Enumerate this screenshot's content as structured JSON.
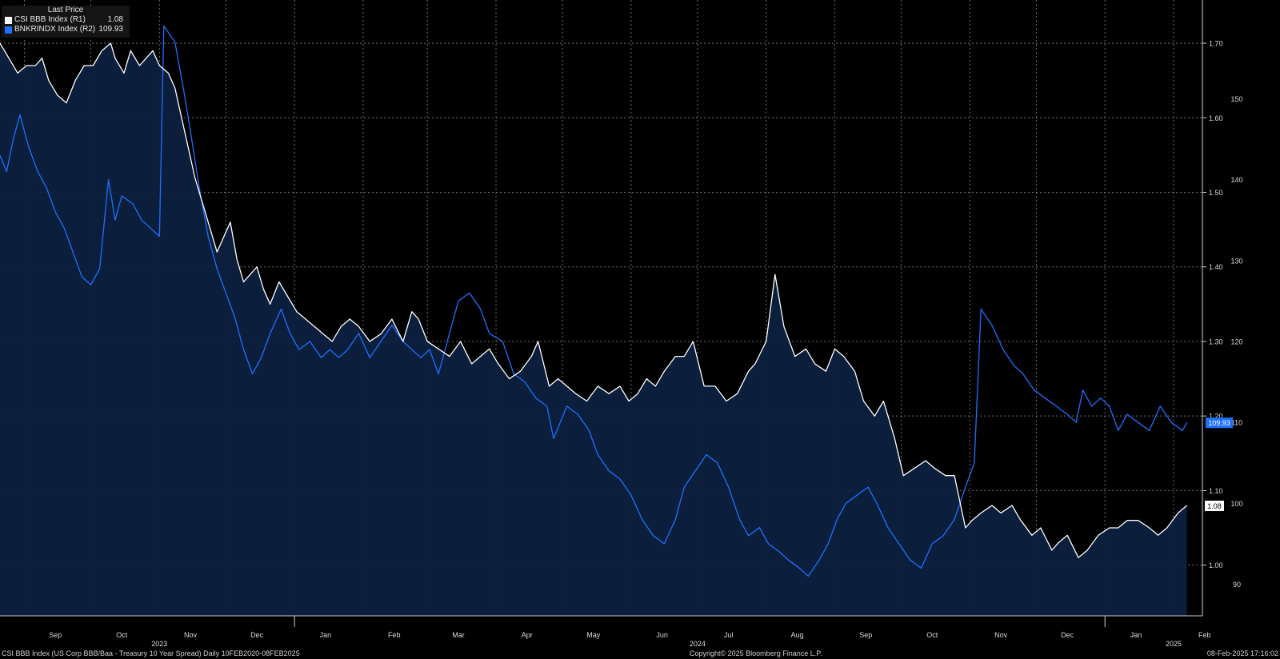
{
  "legend": {
    "header": "Last Price",
    "items": [
      {
        "name": "CSI BBB Index  (R1)",
        "value": "1.08",
        "color": "#ffffff"
      },
      {
        "name": "BNKRINDX Index  (R2)",
        "value": "109.93",
        "color": "#1f6fff"
      }
    ]
  },
  "footer": {
    "left": "CSI BBB Index (US Corp BBB/Baa - Treasury 10 Year Spread)  Daily 10FEB2020-08FEB2025",
    "center": "Copyright© 2025 Bloomberg Finance L.P.",
    "right": "08-Feb-2025 17:16:02"
  },
  "chart_data": {
    "type": "line",
    "x_start": "2023-08-21",
    "x_end": "2025-02-14",
    "x_month_labels": [
      {
        "label": "Sep",
        "date": "2023-09-15"
      },
      {
        "label": "Oct",
        "date": "2023-10-15"
      },
      {
        "label": "Nov",
        "date": "2023-11-15"
      },
      {
        "label": "Dec",
        "date": "2023-12-15"
      },
      {
        "label": "Jan",
        "date": "2024-01-15"
      },
      {
        "label": "Feb",
        "date": "2024-02-15"
      },
      {
        "label": "Mar",
        "date": "2024-03-15"
      },
      {
        "label": "Apr",
        "date": "2024-04-15"
      },
      {
        "label": "May",
        "date": "2024-05-15"
      },
      {
        "label": "Jun",
        "date": "2024-06-15"
      },
      {
        "label": "Jul",
        "date": "2024-07-15"
      },
      {
        "label": "Aug",
        "date": "2024-08-15"
      },
      {
        "label": "Sep",
        "date": "2024-09-15"
      },
      {
        "label": "Oct",
        "date": "2024-10-15"
      },
      {
        "label": "Nov",
        "date": "2024-11-15"
      },
      {
        "label": "Dec",
        "date": "2024-12-15"
      },
      {
        "label": "Jan",
        "date": "2025-01-15"
      },
      {
        "label": "Feb",
        "date": "2025-02-15"
      }
    ],
    "x_year_labels": [
      {
        "label": "2023",
        "date": "2023-11-01"
      },
      {
        "label": "2024",
        "date": "2024-07-01"
      },
      {
        "label": "2025",
        "date": "2025-02-01"
      }
    ],
    "year_separators": [
      "2024-01-01",
      "2025-01-01"
    ],
    "r1_axis": {
      "ticks": [
        1.0,
        1.1,
        1.2,
        1.3,
        1.4,
        1.5,
        1.6,
        1.7
      ],
      "tick_labels": [
        "1.00",
        "1.10",
        "1.20",
        "1.30",
        "1.40",
        "1.50",
        "1.60",
        "1.70"
      ],
      "range": [
        0.932,
        1.758
      ]
    },
    "r2_axis": {
      "ticks": [
        90,
        100,
        110,
        120,
        130,
        140,
        150
      ],
      "tick_labels": [
        "90",
        "100",
        "110",
        "120",
        "130",
        "140",
        "150"
      ],
      "range": [
        86.1,
        162.2
      ]
    },
    "grid": true,
    "last_value_labels": {
      "r1": "1.08",
      "r2": "109.93"
    },
    "series": [
      {
        "name": "CSI BBB Index (R1)",
        "axis": "r1",
        "color": "#ffffff",
        "fill": true,
        "x": [
          "2023-08-21",
          "2023-08-25",
          "2023-08-29",
          "2023-09-02",
          "2023-09-06",
          "2023-09-09",
          "2023-09-12",
          "2023-09-16",
          "2023-09-20",
          "2023-09-24",
          "2023-09-28",
          "2023-10-02",
          "2023-10-06",
          "2023-10-10",
          "2023-10-12",
          "2023-10-16",
          "2023-10-19",
          "2023-10-23",
          "2023-10-26",
          "2023-10-29",
          "2023-11-01",
          "2023-11-05",
          "2023-11-08",
          "2023-11-11",
          "2023-11-14",
          "2023-11-17",
          "2023-11-21",
          "2023-11-24",
          "2023-11-27",
          "2023-11-30",
          "2023-12-03",
          "2023-12-06",
          "2023-12-09",
          "2023-12-12",
          "2023-12-15",
          "2023-12-18",
          "2023-12-21",
          "2023-12-25",
          "2023-12-29",
          "2024-01-02",
          "2024-01-06",
          "2024-01-10",
          "2024-01-14",
          "2024-01-18",
          "2024-01-22",
          "2024-01-26",
          "2024-01-30",
          "2024-02-04",
          "2024-02-09",
          "2024-02-14",
          "2024-02-19",
          "2024-02-23",
          "2024-02-26",
          "2024-03-01",
          "2024-03-06",
          "2024-03-11",
          "2024-03-16",
          "2024-03-21",
          "2024-03-25",
          "2024-03-29",
          "2024-04-02",
          "2024-04-07",
          "2024-04-12",
          "2024-04-17",
          "2024-04-20",
          "2024-04-25",
          "2024-04-29",
          "2024-05-03",
          "2024-05-07",
          "2024-05-12",
          "2024-05-17",
          "2024-05-22",
          "2024-05-27",
          "2024-05-31",
          "2024-06-04",
          "2024-06-08",
          "2024-06-12",
          "2024-06-16",
          "2024-06-21",
          "2024-06-25",
          "2024-06-29",
          "2024-07-04",
          "2024-07-09",
          "2024-07-14",
          "2024-07-19",
          "2024-07-24",
          "2024-07-27",
          "2024-08-01",
          "2024-08-05",
          "2024-08-09",
          "2024-08-14",
          "2024-08-19",
          "2024-08-23",
          "2024-08-28",
          "2024-09-01",
          "2024-09-05",
          "2024-09-10",
          "2024-09-14",
          "2024-09-19",
          "2024-09-23",
          "2024-09-28",
          "2024-10-02",
          "2024-10-07",
          "2024-10-12",
          "2024-10-16",
          "2024-10-21",
          "2024-10-25",
          "2024-10-30",
          "2024-11-02",
          "2024-11-06",
          "2024-11-11",
          "2024-11-15",
          "2024-11-20",
          "2024-11-24",
          "2024-11-29",
          "2024-12-03",
          "2024-12-08",
          "2024-12-11",
          "2024-12-15",
          "2024-12-20",
          "2024-12-24",
          "2024-12-29",
          "2025-01-03",
          "2025-01-07",
          "2025-01-11",
          "2025-01-16",
          "2025-01-21",
          "2025-01-25",
          "2025-01-29",
          "2025-02-03",
          "2025-02-07"
        ],
        "values": [
          1.7,
          1.68,
          1.66,
          1.67,
          1.67,
          1.68,
          1.65,
          1.63,
          1.62,
          1.65,
          1.67,
          1.67,
          1.69,
          1.7,
          1.68,
          1.66,
          1.69,
          1.67,
          1.68,
          1.69,
          1.67,
          1.66,
          1.64,
          1.6,
          1.56,
          1.52,
          1.48,
          1.45,
          1.42,
          1.44,
          1.46,
          1.41,
          1.38,
          1.39,
          1.4,
          1.37,
          1.35,
          1.38,
          1.36,
          1.34,
          1.33,
          1.32,
          1.31,
          1.3,
          1.32,
          1.33,
          1.32,
          1.3,
          1.31,
          1.33,
          1.3,
          1.34,
          1.33,
          1.3,
          1.29,
          1.28,
          1.3,
          1.27,
          1.28,
          1.29,
          1.27,
          1.25,
          1.26,
          1.28,
          1.3,
          1.24,
          1.25,
          1.24,
          1.23,
          1.22,
          1.24,
          1.23,
          1.24,
          1.22,
          1.23,
          1.25,
          1.24,
          1.26,
          1.28,
          1.28,
          1.3,
          1.24,
          1.24,
          1.22,
          1.23,
          1.26,
          1.27,
          1.3,
          1.39,
          1.32,
          1.28,
          1.29,
          1.27,
          1.26,
          1.29,
          1.28,
          1.26,
          1.22,
          1.2,
          1.22,
          1.17,
          1.12,
          1.13,
          1.14,
          1.13,
          1.12,
          1.12,
          1.05,
          1.06,
          1.07,
          1.08,
          1.07,
          1.08,
          1.06,
          1.04,
          1.05,
          1.02,
          1.03,
          1.04,
          1.01,
          1.02,
          1.04,
          1.05,
          1.05,
          1.06,
          1.06,
          1.05,
          1.04,
          1.05,
          1.07,
          1.08
        ]
      },
      {
        "name": "BNKRINDX Index (R2)",
        "axis": "r2",
        "color": "#1f6fff",
        "fill": false,
        "x": [
          "2023-08-21",
          "2023-08-24",
          "2023-08-27",
          "2023-08-30",
          "2023-09-03",
          "2023-09-07",
          "2023-09-11",
          "2023-09-15",
          "2023-09-19",
          "2023-09-23",
          "2023-09-27",
          "2023-10-01",
          "2023-10-05",
          "2023-10-09",
          "2023-10-12",
          "2023-10-15",
          "2023-10-20",
          "2023-10-24",
          "2023-10-28",
          "2023-11-01",
          "2023-11-03",
          "2023-11-08",
          "2023-11-12",
          "2023-11-15",
          "2023-11-19",
          "2023-11-23",
          "2023-11-27",
          "2023-12-01",
          "2023-12-05",
          "2023-12-09",
          "2023-12-13",
          "2023-12-17",
          "2023-12-21",
          "2023-12-26",
          "2023-12-30",
          "2024-01-03",
          "2024-01-08",
          "2024-01-13",
          "2024-01-17",
          "2024-01-21",
          "2024-01-25",
          "2024-01-30",
          "2024-02-04",
          "2024-02-09",
          "2024-02-14",
          "2024-02-19",
          "2024-02-23",
          "2024-02-27",
          "2024-03-02",
          "2024-03-06",
          "2024-03-10",
          "2024-03-15",
          "2024-03-20",
          "2024-03-25",
          "2024-03-29",
          "2024-04-04",
          "2024-04-09",
          "2024-04-14",
          "2024-04-19",
          "2024-04-24",
          "2024-04-27",
          "2024-05-03",
          "2024-05-08",
          "2024-05-13",
          "2024-05-17",
          "2024-05-22",
          "2024-05-27",
          "2024-06-01",
          "2024-06-06",
          "2024-06-11",
          "2024-06-16",
          "2024-06-21",
          "2024-06-25",
          "2024-06-30",
          "2024-07-05",
          "2024-07-10",
          "2024-07-15",
          "2024-07-20",
          "2024-07-24",
          "2024-07-29",
          "2024-08-02",
          "2024-08-07",
          "2024-08-11",
          "2024-08-16",
          "2024-08-20",
          "2024-08-25",
          "2024-08-29",
          "2024-09-02",
          "2024-09-06",
          "2024-09-11",
          "2024-09-16",
          "2024-09-20",
          "2024-09-25",
          "2024-09-30",
          "2024-10-05",
          "2024-10-10",
          "2024-10-15",
          "2024-10-20",
          "2024-10-25",
          "2024-10-30",
          "2024-11-03",
          "2024-11-06",
          "2024-11-11",
          "2024-11-16",
          "2024-11-21",
          "2024-11-25",
          "2024-11-30",
          "2024-12-05",
          "2024-12-10",
          "2024-12-15",
          "2024-12-19",
          "2024-12-22",
          "2024-12-26",
          "2024-12-30",
          "2025-01-03",
          "2025-01-07",
          "2025-01-11",
          "2025-01-16",
          "2025-01-21",
          "2025-01-26",
          "2025-01-31",
          "2025-02-05",
          "2025-02-07"
        ],
        "values": [
          143,
          141,
          145,
          148,
          144,
          141,
          139,
          136,
          134,
          131,
          128,
          127,
          129,
          140,
          135,
          138,
          137,
          135,
          134,
          133,
          159,
          157,
          151,
          146,
          139,
          133,
          129,
          126,
          123,
          119,
          116,
          118,
          121,
          124,
          121,
          119,
          120,
          118,
          119,
          118,
          119,
          121,
          118,
          120,
          122,
          120,
          119,
          118,
          119,
          116,
          120,
          125,
          126,
          124,
          121,
          120,
          116,
          115,
          113,
          112,
          108,
          112,
          111,
          109,
          106,
          104,
          103,
          101,
          98,
          96,
          95,
          98,
          102,
          104,
          106,
          105,
          102,
          98,
          96,
          97,
          95,
          94,
          93,
          92,
          91,
          93,
          95,
          98,
          100,
          101,
          102,
          100,
          97,
          95,
          93,
          92,
          95,
          96,
          98,
          102,
          105,
          124,
          122,
          119,
          117,
          116,
          114,
          113,
          112,
          111,
          110,
          114,
          112,
          113,
          112,
          109,
          111,
          110,
          109,
          112,
          110,
          109,
          110
        ]
      }
    ]
  }
}
